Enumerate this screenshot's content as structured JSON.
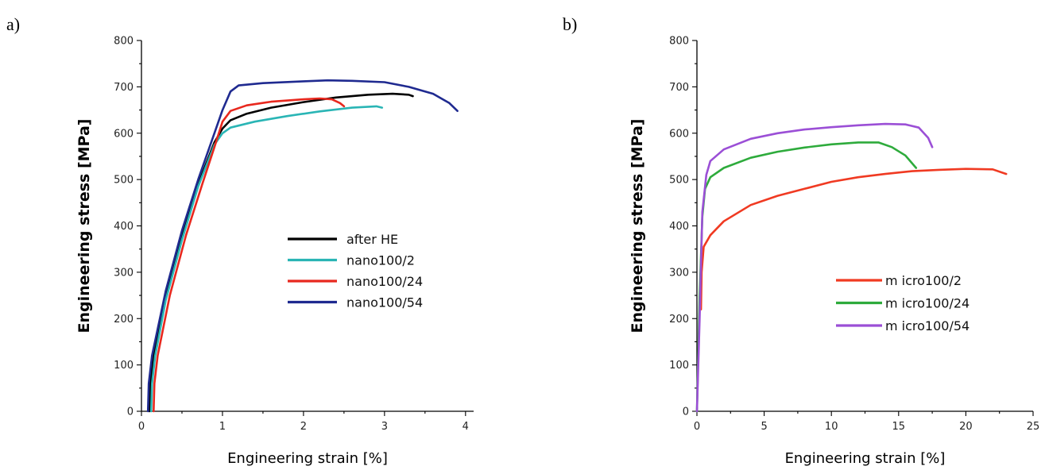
{
  "chart_data": [
    {
      "panel": "a)",
      "type": "line",
      "xlabel": "Engineering strain [%]",
      "ylabel": "Engineering stress [MPa]",
      "xlim": [
        0,
        4.1
      ],
      "ylim": [
        0,
        800
      ],
      "xticks": [
        0,
        1,
        2,
        3,
        4
      ],
      "yticks": [
        0,
        100,
        200,
        300,
        400,
        500,
        600,
        700,
        800
      ],
      "grid": false,
      "legend_position": "center-right",
      "series": [
        {
          "name": "after HE",
          "color": "#000000",
          "points": [
            [
              0.1,
              0
            ],
            [
              0.11,
              60
            ],
            [
              0.15,
              120
            ],
            [
              0.3,
              250
            ],
            [
              0.5,
              380
            ],
            [
              0.7,
              490
            ],
            [
              0.9,
              580
            ],
            [
              1.0,
              610
            ],
            [
              1.1,
              628
            ],
            [
              1.3,
              642
            ],
            [
              1.6,
              655
            ],
            [
              2.0,
              667
            ],
            [
              2.4,
              677
            ],
            [
              2.8,
              683
            ],
            [
              3.1,
              685
            ],
            [
              3.3,
              683
            ],
            [
              3.35,
              680
            ]
          ]
        },
        {
          "name": "nano100/2",
          "color": "#2ab5b5",
          "points": [
            [
              0.12,
              0
            ],
            [
              0.13,
              60
            ],
            [
              0.17,
              120
            ],
            [
              0.3,
              240
            ],
            [
              0.5,
              370
            ],
            [
              0.7,
              485
            ],
            [
              0.9,
              575
            ],
            [
              1.0,
              600
            ],
            [
              1.1,
              612
            ],
            [
              1.4,
              625
            ],
            [
              1.8,
              637
            ],
            [
              2.2,
              647
            ],
            [
              2.6,
              655
            ],
            [
              2.9,
              658
            ],
            [
              2.97,
              655
            ]
          ]
        },
        {
          "name": "nano100/24",
          "color": "#e8281e",
          "points": [
            [
              0.15,
              0
            ],
            [
              0.16,
              60
            ],
            [
              0.2,
              120
            ],
            [
              0.35,
              250
            ],
            [
              0.55,
              380
            ],
            [
              0.75,
              490
            ],
            [
              0.9,
              570
            ],
            [
              1.0,
              625
            ],
            [
              1.1,
              648
            ],
            [
              1.3,
              660
            ],
            [
              1.6,
              668
            ],
            [
              2.0,
              673
            ],
            [
              2.2,
              675
            ],
            [
              2.35,
              673
            ],
            [
              2.45,
              665
            ],
            [
              2.5,
              658
            ]
          ]
        },
        {
          "name": "nano100/54",
          "color": "#1f2a90",
          "points": [
            [
              0.08,
              0
            ],
            [
              0.09,
              60
            ],
            [
              0.13,
              120
            ],
            [
              0.3,
              260
            ],
            [
              0.5,
              390
            ],
            [
              0.7,
              500
            ],
            [
              0.9,
              600
            ],
            [
              1.0,
              650
            ],
            [
              1.1,
              690
            ],
            [
              1.2,
              703
            ],
            [
              1.5,
              708
            ],
            [
              2.0,
              712
            ],
            [
              2.3,
              714
            ],
            [
              2.6,
              713
            ],
            [
              3.0,
              710
            ],
            [
              3.3,
              700
            ],
            [
              3.6,
              685
            ],
            [
              3.8,
              665
            ],
            [
              3.9,
              648
            ]
          ]
        }
      ]
    },
    {
      "panel": "b)",
      "type": "line",
      "xlabel": "Engineering strain [%]",
      "ylabel": "Engineering stress [MPa]",
      "xlim": [
        0,
        25
      ],
      "ylim": [
        0,
        800
      ],
      "xticks": [
        0,
        5,
        10,
        15,
        20,
        25
      ],
      "yticks": [
        0,
        100,
        200,
        300,
        400,
        500,
        600,
        700,
        800
      ],
      "grid": false,
      "legend_position": "center-right",
      "series": [
        {
          "name": "m icro100/2",
          "color": "#f03a22",
          "points": [
            [
              0.3,
              220
            ],
            [
              0.35,
              300
            ],
            [
              0.5,
              355
            ],
            [
              1,
              380
            ],
            [
              2,
              410
            ],
            [
              4,
              445
            ],
            [
              6,
              465
            ],
            [
              8,
              480
            ],
            [
              10,
              495
            ],
            [
              12,
              505
            ],
            [
              14,
              512
            ],
            [
              16,
              518
            ],
            [
              18,
              521
            ],
            [
              20,
              523
            ],
            [
              22,
              522
            ],
            [
              23,
              512
            ]
          ]
        },
        {
          "name": "m icro100/24",
          "color": "#2eab3c",
          "points": [
            [
              0,
              0
            ],
            [
              0.2,
              250
            ],
            [
              0.4,
              420
            ],
            [
              0.6,
              480
            ],
            [
              1,
              505
            ],
            [
              2,
              525
            ],
            [
              4,
              547
            ],
            [
              6,
              560
            ],
            [
              8,
              569
            ],
            [
              10,
              576
            ],
            [
              12,
              580
            ],
            [
              13.5,
              580
            ],
            [
              14.5,
              570
            ],
            [
              15.5,
              552
            ],
            [
              16.3,
              525
            ]
          ]
        },
        {
          "name": "m icro100/54",
          "color": "#9b4fd6",
          "points": [
            [
              0,
              0
            ],
            [
              0.2,
              200
            ],
            [
              0.4,
              430
            ],
            [
              0.7,
              510
            ],
            [
              1,
              540
            ],
            [
              2,
              565
            ],
            [
              4,
              588
            ],
            [
              6,
              600
            ],
            [
              8,
              608
            ],
            [
              10,
              613
            ],
            [
              12,
              617
            ],
            [
              14,
              620
            ],
            [
              15.5,
              619
            ],
            [
              16.5,
              612
            ],
            [
              17.2,
              590
            ],
            [
              17.5,
              570
            ]
          ]
        }
      ]
    }
  ]
}
